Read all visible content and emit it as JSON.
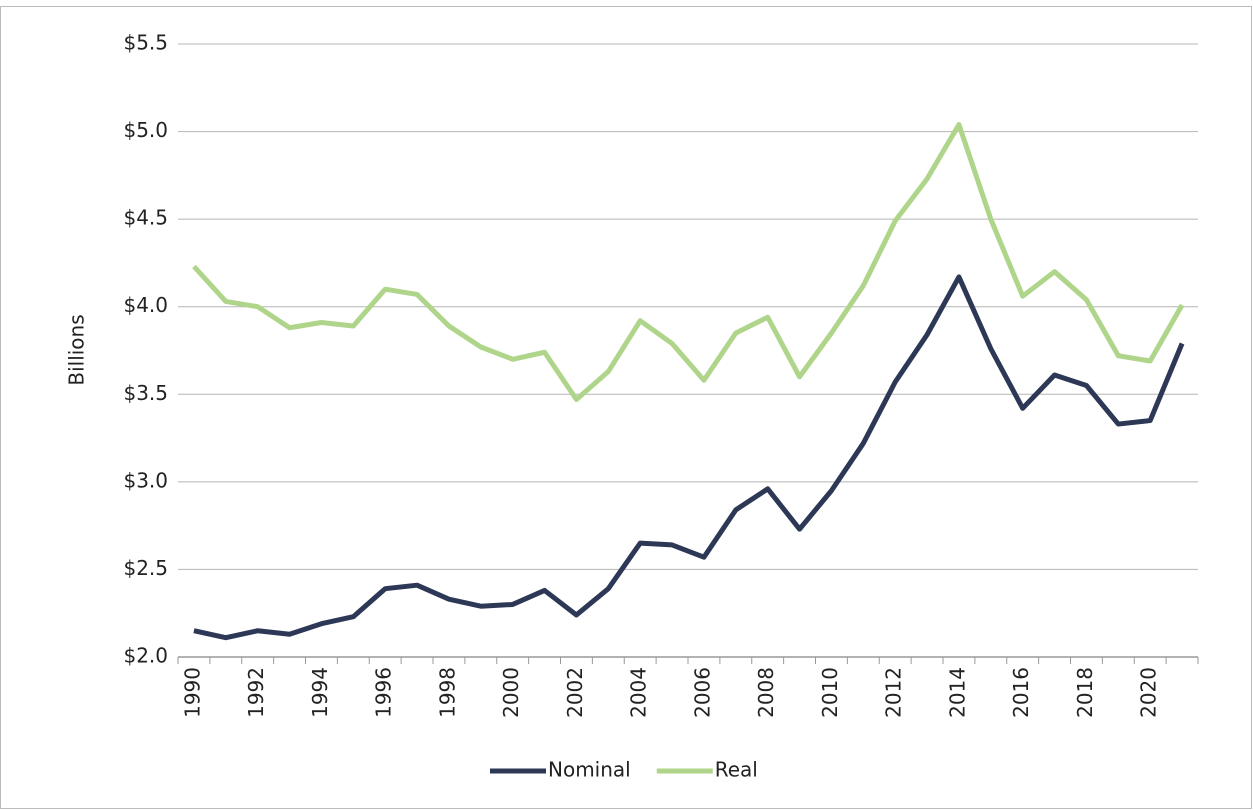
{
  "chart_data": {
    "type": "line",
    "y_label": "Billions",
    "categories": [
      "1990",
      null,
      "1992",
      null,
      "1994",
      null,
      "1996",
      null,
      "1998",
      null,
      "2000",
      null,
      "2002",
      null,
      "2004",
      null,
      "2006",
      null,
      "2008",
      null,
      "2010",
      null,
      "2012",
      null,
      "2014",
      null,
      "2016",
      null,
      "2018",
      null,
      "2020",
      null
    ],
    "series": [
      {
        "name": "Nominal",
        "color": "#2d3856",
        "values": [
          2.15,
          2.11,
          2.15,
          2.13,
          2.19,
          2.23,
          2.39,
          2.41,
          2.33,
          2.29,
          2.3,
          2.38,
          2.24,
          2.39,
          2.65,
          2.64,
          2.57,
          2.84,
          2.96,
          2.73,
          2.95,
          3.22,
          3.57,
          3.84,
          4.17,
          3.76,
          3.42,
          3.61,
          3.55,
          3.33,
          3.35,
          3.79
        ]
      },
      {
        "name": "Real",
        "color": "#afd58a",
        "values": [
          4.23,
          4.03,
          4.0,
          3.88,
          3.91,
          3.89,
          4.1,
          4.07,
          3.89,
          3.77,
          3.7,
          3.74,
          3.47,
          3.63,
          3.92,
          3.79,
          3.58,
          3.85,
          3.94,
          3.6,
          3.85,
          4.12,
          4.49,
          4.73,
          5.04,
          4.5,
          4.06,
          4.2,
          4.04,
          3.72,
          3.69,
          4.01
        ]
      }
    ],
    "ylim": [
      2.0,
      5.5
    ],
    "yticks": [
      {
        "value": 2.0,
        "label": "$2.0"
      },
      {
        "value": 2.5,
        "label": "$2.5"
      },
      {
        "value": 3.0,
        "label": "$3.0"
      },
      {
        "value": 3.5,
        "label": "$3.5"
      },
      {
        "value": 4.0,
        "label": "$4.0"
      },
      {
        "value": 4.5,
        "label": "$4.5"
      },
      {
        "value": 5.0,
        "label": "$5.0"
      },
      {
        "value": 5.5,
        "label": "$5.5"
      }
    ],
    "grid": true,
    "legend": "bottom"
  }
}
